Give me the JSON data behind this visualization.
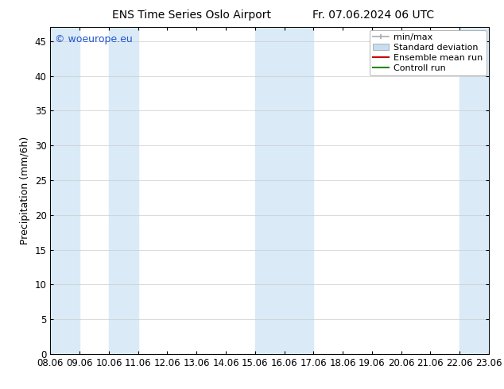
{
  "title_left": "ENS Time Series Oslo Airport",
  "title_right": "Fr. 07.06.2024 06 UTC",
  "ylabel": "Precipitation (mm/6h)",
  "watermark": "© woeurope.eu",
  "x_labels": [
    "08.06",
    "09.06",
    "10.06",
    "11.06",
    "12.06",
    "13.06",
    "14.06",
    "15.06",
    "16.06",
    "17.06",
    "18.06",
    "19.06",
    "20.06",
    "21.06",
    "22.06",
    "23.06"
  ],
  "ylim": [
    0,
    47
  ],
  "yticks": [
    0,
    5,
    10,
    15,
    20,
    25,
    30,
    35,
    40,
    45
  ],
  "shade_regions_idx": [
    {
      "xmin": 0,
      "xmax": 1
    },
    {
      "xmin": 2,
      "xmax": 3
    },
    {
      "xmin": 7,
      "xmax": 9
    },
    {
      "xmin": 14,
      "xmax": 15
    }
  ],
  "shade_color": "#daeaf7",
  "legend_entries": [
    {
      "label": "min/max",
      "type": "minmax",
      "color": "#aaaaaa"
    },
    {
      "label": "Standard deviation",
      "type": "patch",
      "color": "#c8dded"
    },
    {
      "label": "Ensemble mean run",
      "type": "line",
      "color": "#cc0000"
    },
    {
      "label": "Controll run",
      "type": "line",
      "color": "#228800"
    }
  ],
  "background_color": "#ffffff",
  "watermark_color": "#2255cc",
  "title_fontsize": 10,
  "axis_label_fontsize": 9,
  "tick_fontsize": 8.5,
  "legend_fontsize": 8
}
